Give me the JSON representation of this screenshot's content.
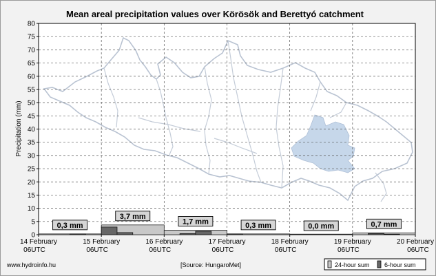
{
  "chart_data": {
    "type": "bar",
    "title": "Mean areal precipitation values over Körösök and Berettyó catchment",
    "ylabel": "Precipitation (mm)",
    "xlabel": "",
    "ylim": [
      0,
      80
    ],
    "ytick_step": 5,
    "grid": true,
    "x_ticks": [
      {
        "line1": "14 February",
        "line2": "06UTC"
      },
      {
        "line1": "15 February",
        "line2": "06UTC"
      },
      {
        "line1": "16 February",
        "line2": "06UTC"
      },
      {
        "line1": "17 February",
        "line2": "06UTC"
      },
      {
        "line1": "18 February",
        "line2": "06UTC"
      },
      {
        "line1": "19 February",
        "line2": "06UTC"
      },
      {
        "line1": "20 February",
        "line2": "06UTC"
      }
    ],
    "series": [
      {
        "name": "24-hour sum",
        "color": "#c8c8c8",
        "values": [
          0.3,
          3.7,
          1.7,
          0.3,
          0.0,
          0.7
        ],
        "labels": [
          "0,3 mm",
          "3,7 mm",
          "1,7 mm",
          "0,3 mm",
          "0,0 mm",
          "0,7 mm"
        ]
      },
      {
        "name": "6-hour sum",
        "color": "#666666",
        "values": [
          0,
          0,
          0.3,
          0,
          2.9,
          0.8,
          0,
          0,
          0,
          0.4,
          1.3,
          0,
          0.3,
          0,
          0,
          0,
          0,
          0,
          0,
          0,
          0,
          0.5,
          0.2,
          0
        ]
      }
    ]
  },
  "map": {
    "highlight_color": "#c6d7ea",
    "outline_color": "#b9c3d2"
  },
  "footer": {
    "website": "www.hydroinfo.hu",
    "source": "[Source: HungaroMet]"
  },
  "legend": {
    "item1": "24-hour sum",
    "item2": "6-hour sum"
  }
}
